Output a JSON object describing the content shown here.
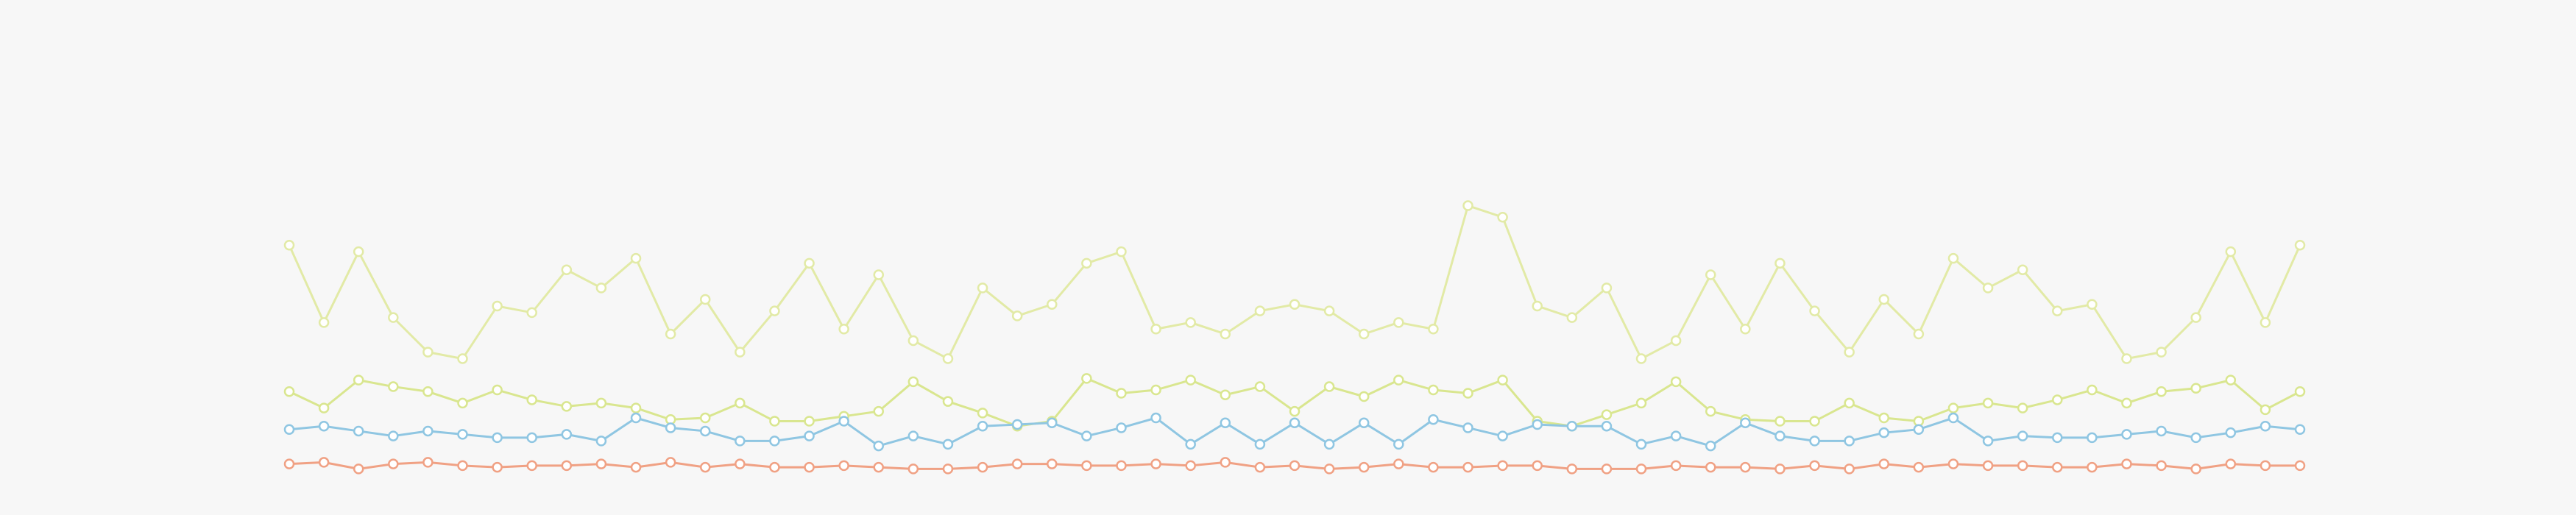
{
  "chart_data": {
    "type": "line",
    "ylim": [
      0,
      313
    ],
    "series": [
      {
        "color": "#e2eaa6",
        "values": [
          164,
          117,
          160,
          120,
          99,
          95,
          127,
          123,
          149,
          138,
          156,
          110,
          131,
          99,
          124,
          153,
          113,
          146,
          106,
          95,
          138,
          121,
          128,
          153,
          160,
          113,
          117,
          110,
          124,
          128,
          124,
          110,
          117,
          113,
          188,
          181,
          127,
          120,
          138,
          95,
          106,
          146,
          113,
          153,
          124,
          99,
          131,
          110,
          156,
          138,
          149,
          124,
          128,
          95,
          99,
          120,
          160,
          117,
          164
        ]
      },
      {
        "color": "#d9e68f",
        "values": [
          75,
          65,
          82,
          78,
          75,
          68,
          76,
          70,
          66,
          68,
          65,
          58,
          59,
          68,
          57,
          57,
          60,
          63,
          81,
          69,
          62,
          54,
          57,
          83,
          74,
          76,
          82,
          73,
          78,
          63,
          78,
          72,
          82,
          76,
          74,
          82,
          57,
          54,
          61,
          68,
          81,
          63,
          58,
          57,
          57,
          68,
          59,
          57,
          65,
          68,
          65,
          70,
          76,
          68,
          75,
          77,
          82,
          64,
          75
        ]
      },
      {
        "color": "#8fc6e2",
        "values": [
          52,
          54,
          51,
          48,
          51,
          49,
          47,
          47,
          49,
          45,
          59,
          53,
          51,
          45,
          45,
          48,
          57,
          42,
          48,
          43,
          54,
          55,
          56,
          48,
          53,
          59,
          43,
          56,
          43,
          56,
          43,
          56,
          43,
          58,
          53,
          48,
          55,
          54,
          54,
          43,
          48,
          42,
          56,
          48,
          45,
          45,
          50,
          52,
          59,
          45,
          48,
          47,
          47,
          49,
          51,
          47,
          50,
          54,
          52
        ]
      },
      {
        "color": "#f0a184",
        "values": [
          31,
          32,
          28,
          31,
          32,
          30,
          29,
          30,
          30,
          31,
          29,
          32,
          29,
          31,
          29,
          29,
          30,
          29,
          28,
          28,
          29,
          31,
          31,
          30,
          30,
          31,
          30,
          32,
          29,
          30,
          28,
          29,
          31,
          29,
          29,
          30,
          30,
          28,
          28,
          28,
          30,
          29,
          29,
          28,
          30,
          28,
          31,
          29,
          31,
          30,
          30,
          29,
          29,
          31,
          30,
          28,
          31,
          30,
          30
        ]
      }
    ]
  }
}
